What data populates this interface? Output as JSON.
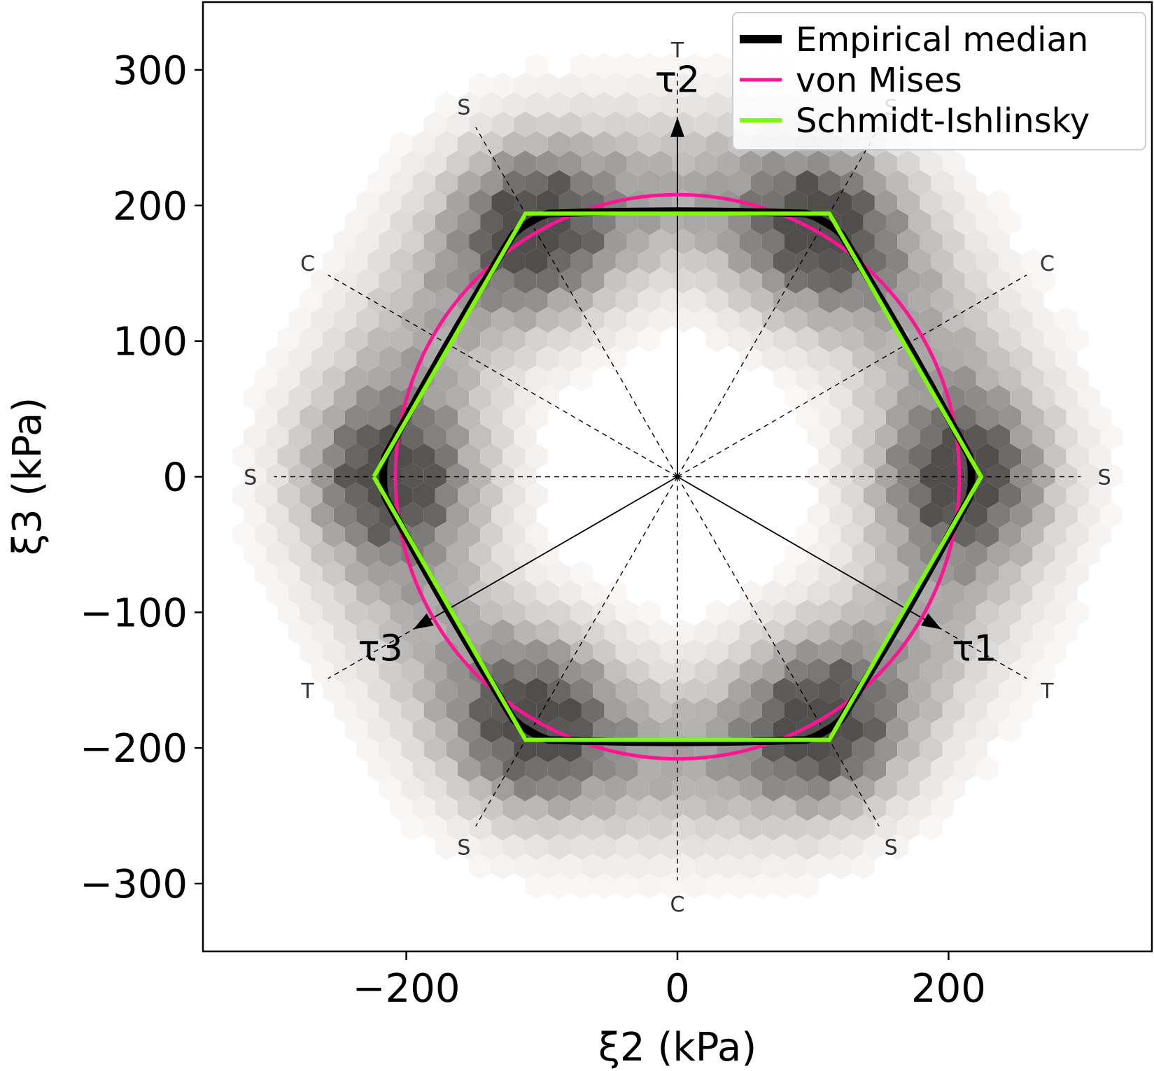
{
  "chart_data": {
    "type": "scatter",
    "subtype": "hexbin density with overlaid yield-surface curves",
    "xlabel": "ξ2 (kPa)",
    "ylabel": "ξ3 (kPa)",
    "xlim": [
      -350,
      350
    ],
    "ylim": [
      -350,
      350
    ],
    "xticks": [
      -200,
      0,
      200
    ],
    "yticks": [
      300,
      200,
      100,
      0,
      -100,
      -200,
      -300
    ],
    "xtick_labels": [
      "−200",
      "0",
      "200"
    ],
    "ytick_labels": [
      "300",
      "200",
      "100",
      "0",
      "−100",
      "−200",
      "−300"
    ],
    "grid": false,
    "legend_position": "top-right",
    "legend": [
      "Empirical median",
      "von Mises",
      "Schmidt-Ishlinsky"
    ],
    "series": [
      {
        "name": "Empirical median",
        "color": "#000000",
        "shape": "rounded hexagon (median contour)",
        "apothem": 195,
        "vertex_radius": 218
      },
      {
        "name": "von Mises",
        "color": "#ff1493",
        "shape": "circle",
        "radius": 208
      },
      {
        "name": "Schmidt-Ishlinsky",
        "color": "#7cfc00",
        "shape": "hexagon",
        "x": [
          -224,
          -112,
          112,
          224,
          112,
          -112,
          -224
        ],
        "y": [
          0,
          194,
          194,
          0,
          -194,
          -194,
          0
        ]
      }
    ],
    "density": {
      "description": "Hexbin density of samples, grayscale; ring-shaped with six darker lobes near the hexagon corners",
      "colormap": "white to dark gray",
      "ring_center_radius": 205,
      "ring_inner_radius": 110,
      "ring_outer_radius": 330
    },
    "principal_axes": [
      {
        "label": "τ1",
        "angle_deg": -30,
        "length": 225
      },
      {
        "label": "τ2",
        "angle_deg": 90,
        "length": 265
      },
      {
        "label": "τ3",
        "angle_deg": 210,
        "length": 225
      }
    ],
    "direction_lines": {
      "radius": 320,
      "label_radius": 315,
      "labels": [
        {
          "text": "S",
          "angle_deg": 0
        },
        {
          "text": "C",
          "angle_deg": 30
        },
        {
          "text": "S",
          "angle_deg": 60
        },
        {
          "text": "T",
          "angle_deg": 90
        },
        {
          "text": "S",
          "angle_deg": 120
        },
        {
          "text": "C",
          "angle_deg": 150
        },
        {
          "text": "S",
          "angle_deg": 180
        },
        {
          "text": "T",
          "angle_deg": 210
        },
        {
          "text": "S",
          "angle_deg": 240
        },
        {
          "text": "C",
          "angle_deg": 270
        },
        {
          "text": "S",
          "angle_deg": 300
        },
        {
          "text": "T",
          "angle_deg": 330
        }
      ]
    }
  }
}
